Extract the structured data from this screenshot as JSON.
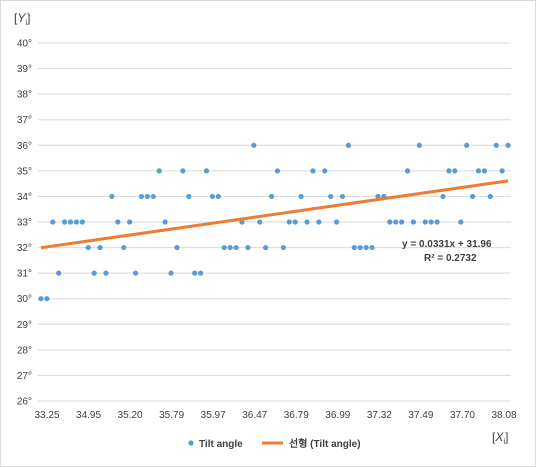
{
  "chart_data": {
    "type": "scatter",
    "ylabel_base": "Y",
    "ylabel_sub": "i",
    "xlabel_base": "X",
    "xlabel_sub": "i",
    "x_tick_labels": [
      "33.25",
      "34.95",
      "35.20",
      "35.79",
      "35.97",
      "36.47",
      "36.79",
      "36.99",
      "37.32",
      "37.49",
      "37.70",
      "38.08"
    ],
    "y_tick_labels": [
      "26°",
      "27°",
      "28°",
      "29°",
      "30°",
      "31°",
      "32°",
      "33°",
      "34°",
      "35°",
      "36°",
      "37°",
      "38°",
      "39°",
      "40°"
    ],
    "ylim": [
      26,
      40
    ],
    "grid": true,
    "legend_position": "bottom",
    "series": [
      {
        "name": "Tilt angle",
        "kind": "points",
        "color": "#5b9bd5",
        "x": [
          1,
          2,
          3,
          4,
          5,
          6,
          7,
          8,
          9,
          10,
          11,
          12,
          13,
          14,
          15,
          16,
          17,
          18,
          19,
          20,
          21,
          22,
          23,
          24,
          25,
          26,
          27,
          28,
          29,
          30,
          31,
          32,
          33,
          34,
          35,
          36,
          37,
          38,
          39,
          40,
          41,
          42,
          43,
          44,
          45,
          46,
          47,
          48,
          49,
          50,
          51,
          52,
          53,
          54,
          55,
          56,
          57,
          58,
          59,
          60,
          61,
          62,
          63,
          64,
          65,
          66,
          67,
          68,
          69,
          70,
          71,
          72,
          73,
          74,
          75,
          76,
          77,
          78,
          79,
          80
        ],
        "y": [
          30,
          30,
          33,
          31,
          33,
          33,
          33,
          33,
          32,
          31,
          32,
          31,
          34,
          33,
          32,
          33,
          31,
          34,
          34,
          34,
          35,
          33,
          31,
          32,
          35,
          34,
          31,
          31,
          35,
          34,
          34,
          32,
          32,
          32,
          33,
          32,
          36,
          33,
          32,
          34,
          35,
          32,
          33,
          33,
          34,
          33,
          35,
          33,
          35,
          34,
          33,
          34,
          36,
          32,
          32,
          32,
          32,
          34,
          34,
          33,
          33,
          33,
          35,
          33,
          36,
          33,
          33,
          33,
          34,
          35,
          35,
          33,
          36,
          34,
          35,
          35,
          34,
          36,
          35,
          36
        ]
      },
      {
        "name": "선형 (Tilt angle)",
        "kind": "trendline",
        "color": "#ed7d31",
        "slope": 0.0331,
        "intercept": 31.96
      }
    ],
    "annotations": [
      "y = 0.0331x + 31.96",
      "R² = 0.2732"
    ]
  }
}
